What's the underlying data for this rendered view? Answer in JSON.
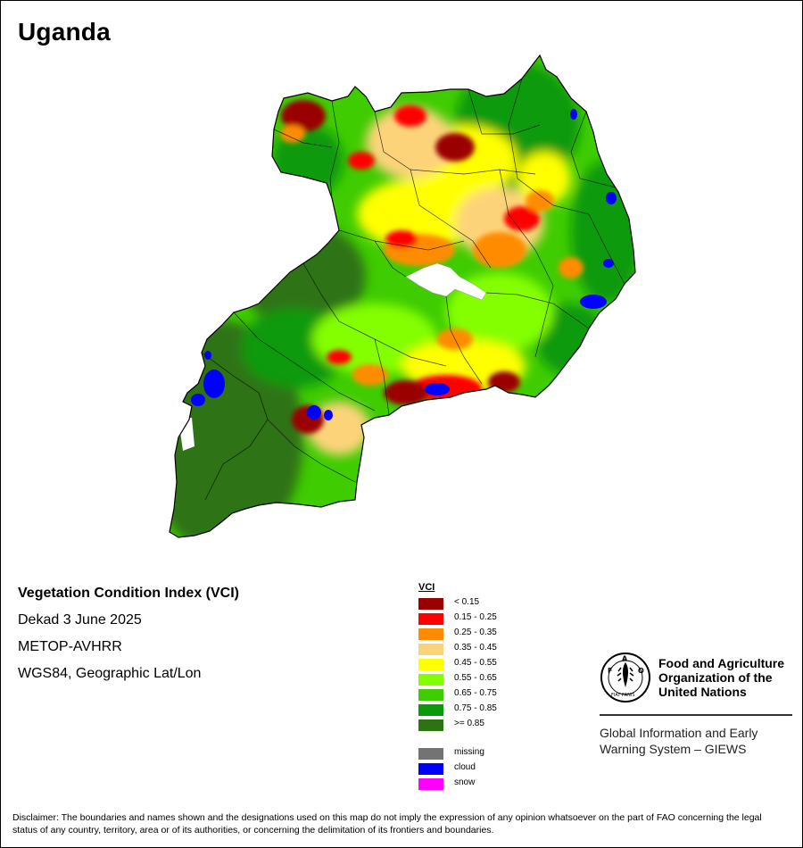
{
  "map": {
    "title": "Uganda"
  },
  "info": {
    "index_name": "Vegetation Condition Index (VCI)",
    "period": "Dekad 3 June 2025",
    "sensor": "METOP-AVHRR",
    "projection": "WGS84, Geographic Lat/Lon"
  },
  "legend": {
    "title": "VCI",
    "classes": [
      {
        "label": "< 0.15",
        "color": "#9b0000"
      },
      {
        "label": "0.15 - 0.25",
        "color": "#ff0000"
      },
      {
        "label": "0.25 - 0.35",
        "color": "#ff8c00"
      },
      {
        "label": "0.35 - 0.45",
        "color": "#fdd37a"
      },
      {
        "label": "0.45 - 0.55",
        "color": "#ffff00"
      },
      {
        "label": "0.55 - 0.65",
        "color": "#84ff00"
      },
      {
        "label": "0.65 - 0.75",
        "color": "#3fcc00"
      },
      {
        "label": "0.75 - 0.85",
        "color": "#0a9a0a"
      },
      {
        "label": ">= 0.85",
        "color": "#2e7312"
      }
    ],
    "extras": [
      {
        "label": "missing",
        "color": "#737373"
      },
      {
        "label": "cloud",
        "color": "#0000ff"
      },
      {
        "label": "snow",
        "color": "#ff00ff"
      }
    ]
  },
  "organization": {
    "emblem_text": "FAO",
    "emblem_motto": "FIAT PANIS",
    "name_lines": [
      "Food and Agriculture",
      "Organization of the",
      "United Nations"
    ],
    "program_lines": [
      "Global Information and Early",
      "Warning System – GIEWS"
    ]
  },
  "disclaimer": "Disclaimer: The boundaries and names shown and the designations used on this map do not imply the expression of any opinion whatsoever on the part of FAO concerning the legal status of any country, territory, area or of its authorities, or concerning the delimitation of its frontiers and boundaries."
}
